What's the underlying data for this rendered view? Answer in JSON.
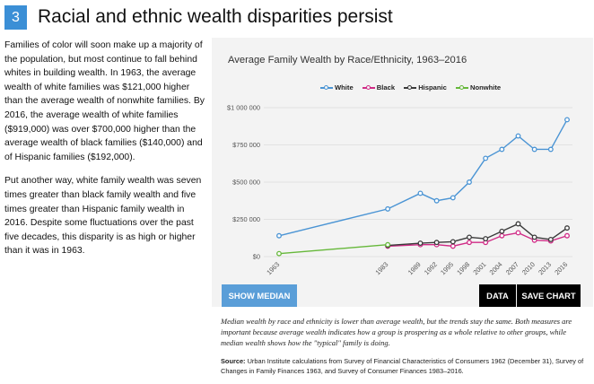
{
  "header": {
    "section_number": "3",
    "title": "Racial and ethnic wealth disparities persist"
  },
  "body": {
    "paragraphs": [
      "Families of color will soon make up a majority of the population, but most continue to fall behind whites in building wealth. In 1963, the average wealth of white families was $121,000 higher than the average wealth of nonwhite families. By 2016, the average wealth of white families ($919,000) was over $700,000 higher than the average wealth of black families ($140,000) and of Hispanic families ($192,000).",
      "Put another way, white family wealth was seven times greater than black family wealth and five times greater than Hispanic family wealth in 2016. Despite some fluctuations over the past five decades, this disparity is as high or higher than it was in 1963."
    ]
  },
  "buttons": {
    "show_median": "SHOW MEDIAN",
    "data": "DATA",
    "save_chart": "SAVE CHART"
  },
  "caption": "Median wealth by race and ethnicity is lower than average wealth, but the trends stay the same. Both measures are important because average wealth indicates how a group is prospering as a whole relative to other groups, while median wealth shows how the \"typical\" family is doing.",
  "source": {
    "label": "Source:",
    "text": " Urban Institute calculations from Survey of Financial Characteristics of Consumers 1962 (December 31), Survey of Changes in Family Finances 1963, and Survey of Consumer Finances 1983–2016."
  },
  "colors": {
    "accent_blue": "#3b8fd6",
    "white_series": "#4a94d4",
    "black_series": "#d02b86",
    "hispanic_series": "#3a3a3a",
    "nonwhite_series": "#66b83a"
  },
  "chart_data": {
    "type": "line",
    "title": "Average Family Wealth by Race/Ethnicity, 1963–2016",
    "xlabel": "",
    "ylabel": "",
    "ylim": [
      0,
      1000000
    ],
    "y_ticks": [
      0,
      250000,
      500000,
      750000,
      1000000
    ],
    "y_tick_labels": [
      "$0",
      "$250 000",
      "$500 000",
      "$750 000",
      "$1 000 000"
    ],
    "x_ticks": [
      "1963",
      "1983",
      "1989",
      "1992",
      "1995",
      "1998",
      "2001",
      "2004",
      "2007",
      "2010",
      "2013",
      "2016"
    ],
    "legend_position": "top-center",
    "series": [
      {
        "name": "White",
        "color": "#4a94d4",
        "x": [
          1963,
          1983,
          1989,
          1992,
          1995,
          1998,
          2001,
          2004,
          2007,
          2010,
          2013,
          2016
        ],
        "values": [
          140000,
          320000,
          425000,
          375000,
          395000,
          500000,
          660000,
          720000,
          810000,
          720000,
          720000,
          919000
        ]
      },
      {
        "name": "Black",
        "color": "#d02b86",
        "x": [
          1983,
          1989,
          1992,
          1995,
          1998,
          2001,
          2004,
          2007,
          2010,
          2013,
          2016
        ],
        "values": [
          70000,
          80000,
          80000,
          70000,
          95000,
          95000,
          140000,
          160000,
          110000,
          105000,
          140000
        ]
      },
      {
        "name": "Hispanic",
        "color": "#3a3a3a",
        "x": [
          1983,
          1989,
          1992,
          1995,
          1998,
          2001,
          2004,
          2007,
          2010,
          2013,
          2016
        ],
        "values": [
          75000,
          90000,
          95000,
          100000,
          130000,
          120000,
          170000,
          220000,
          130000,
          115000,
          192000
        ]
      },
      {
        "name": "Nonwhite",
        "color": "#66b83a",
        "x": [
          1963,
          1983
        ],
        "values": [
          20000,
          80000
        ]
      }
    ]
  }
}
